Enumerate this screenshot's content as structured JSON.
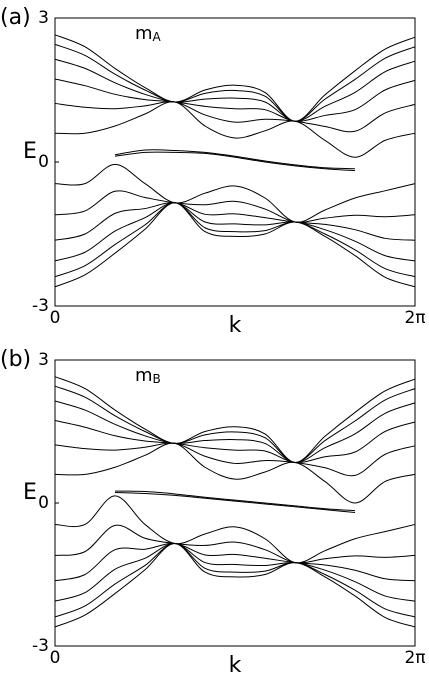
{
  "chart_data": [
    {
      "type": "line",
      "panel_label": "(a)",
      "annotation": {
        "text": "m",
        "subscript": "A"
      },
      "x_label": "k",
      "y_label": "E",
      "color": "#000000",
      "x": [
        0,
        0.5236,
        1.0472,
        1.5708,
        2.0944,
        2.618,
        3.1416,
        3.6652,
        4.1888,
        4.7124,
        5.236,
        5.7596,
        6.2832
      ],
      "xlim": [
        0,
        6.2832
      ],
      "xticks": [
        0,
        {
          "value": 6.2832,
          "label": "2π"
        }
      ],
      "ylim": [
        -3,
        3
      ],
      "yticks": [
        -3,
        0,
        3
      ],
      "series": [
        {
          "values": [
            2.65,
            2.4,
            1.95,
            1.55,
            1.25,
            1.5,
            1.6,
            1.45,
            0.85,
            1.4,
            1.9,
            2.35,
            2.6
          ]
        },
        {
          "values": [
            2.45,
            2.22,
            1.83,
            1.5,
            1.25,
            1.43,
            1.49,
            1.37,
            0.85,
            1.31,
            1.72,
            2.16,
            2.4
          ]
        },
        {
          "values": [
            2.14,
            1.95,
            1.65,
            1.41,
            1.25,
            1.31,
            1.33,
            1.25,
            0.85,
            1.16,
            1.45,
            1.88,
            2.1
          ]
        },
        {
          "values": [
            1.73,
            1.59,
            1.41,
            1.3,
            1.25,
            1.16,
            1.11,
            1.09,
            0.85,
            0.97,
            1.09,
            1.5,
            1.7
          ]
        },
        {
          "values": [
            1.22,
            1.14,
            1.11,
            1.17,
            1.25,
            0.98,
            0.83,
            0.89,
            0.85,
            0.74,
            0.64,
            1.02,
            1.2
          ]
        },
        {
          "values": [
            0.6,
            0.6,
            0.75,
            1.0,
            1.25,
            0.75,
            0.5,
            0.65,
            0.85,
            0.45,
            0.1,
            0.45,
            0.6
          ]
        },
        {
          "values": [
            null,
            null,
            0.12,
            0.2,
            0.2,
            0.18,
            0.1,
            0.0,
            -0.08,
            -0.14,
            -0.18,
            null,
            null
          ]
        },
        {
          "values": [
            null,
            null,
            0.15,
            0.25,
            0.24,
            0.2,
            0.12,
            0.02,
            -0.06,
            -0.12,
            -0.14,
            null,
            null
          ]
        },
        {
          "values": [
            -0.45,
            -0.45,
            -0.05,
            -0.45,
            -0.85,
            -0.65,
            -0.5,
            -0.75,
            -1.25,
            -1.0,
            -0.75,
            -0.6,
            -0.45
          ]
        },
        {
          "values": [
            -1.1,
            -1.02,
            -0.61,
            -0.74,
            -0.85,
            -0.89,
            -0.82,
            -0.98,
            -1.25,
            -1.17,
            -1.11,
            -1.14,
            -1.1
          ]
        },
        {
          "values": [
            -1.63,
            -1.5,
            -1.07,
            -0.97,
            -0.85,
            -1.09,
            -1.08,
            -1.16,
            -1.25,
            -1.3,
            -1.41,
            -1.59,
            -1.63
          ]
        },
        {
          "values": [
            -2.06,
            -1.88,
            -1.44,
            -1.16,
            -0.85,
            -1.25,
            -1.29,
            -1.31,
            -1.25,
            -1.41,
            -1.65,
            -1.95,
            -2.06
          ]
        },
        {
          "values": [
            -2.39,
            -2.16,
            -1.72,
            -1.31,
            -0.85,
            -1.37,
            -1.45,
            -1.43,
            -1.25,
            -1.5,
            -1.83,
            -2.22,
            -2.39
          ]
        },
        {
          "values": [
            -2.6,
            -2.35,
            -1.9,
            -1.4,
            -0.85,
            -1.45,
            -1.55,
            -1.5,
            -1.25,
            -1.55,
            -1.95,
            -2.4,
            -2.6
          ]
        }
      ]
    },
    {
      "type": "line",
      "panel_label": "(b)",
      "annotation": {
        "text": "m",
        "subscript": "B"
      },
      "x_label": "k",
      "y_label": "E",
      "color": "#000000",
      "x": [
        0,
        0.5236,
        1.0472,
        1.5708,
        2.0944,
        2.618,
        3.1416,
        3.6652,
        4.1888,
        4.7124,
        5.236,
        5.7596,
        6.2832
      ],
      "xlim": [
        0,
        6.2832
      ],
      "xticks": [
        0,
        {
          "value": 6.2832,
          "label": "2π"
        }
      ],
      "ylim": [
        -3,
        3
      ],
      "yticks": [
        -3,
        0,
        3
      ],
      "series": [
        {
          "values": [
            2.65,
            2.4,
            1.95,
            1.55,
            1.25,
            1.5,
            1.6,
            1.45,
            0.85,
            1.4,
            1.9,
            2.35,
            2.6
          ]
        },
        {
          "values": [
            2.45,
            2.22,
            1.83,
            1.5,
            1.25,
            1.43,
            1.49,
            1.37,
            0.85,
            1.31,
            1.72,
            2.16,
            2.4
          ]
        },
        {
          "values": [
            2.14,
            1.95,
            1.65,
            1.41,
            1.25,
            1.31,
            1.33,
            1.25,
            0.85,
            1.16,
            1.45,
            1.88,
            2.1
          ]
        },
        {
          "values": [
            1.73,
            1.59,
            1.41,
            1.3,
            1.25,
            1.16,
            1.11,
            1.09,
            0.85,
            0.97,
            1.07,
            1.5,
            1.7
          ]
        },
        {
          "values": [
            1.22,
            1.14,
            1.11,
            1.17,
            1.25,
            0.98,
            0.83,
            0.89,
            0.85,
            0.74,
            0.58,
            1.02,
            1.2
          ]
        },
        {
          "values": [
            0.6,
            0.6,
            0.75,
            1.0,
            1.25,
            0.75,
            0.5,
            0.65,
            0.85,
            0.45,
            0.0,
            0.45,
            0.6
          ]
        },
        {
          "values": [
            null,
            null,
            0.22,
            0.2,
            0.16,
            0.1,
            0.04,
            -0.02,
            -0.08,
            -0.14,
            -0.2,
            null,
            null
          ]
        },
        {
          "values": [
            null,
            null,
            0.25,
            0.24,
            0.19,
            0.12,
            0.06,
            0.0,
            -0.06,
            -0.12,
            -0.16,
            null,
            null
          ]
        },
        {
          "values": [
            -0.45,
            -0.45,
            0.15,
            -0.45,
            -0.85,
            -0.65,
            -0.5,
            -0.75,
            -1.25,
            -1.0,
            -0.75,
            -0.6,
            -0.45
          ]
        },
        {
          "values": [
            -1.1,
            -1.02,
            -0.47,
            -0.74,
            -0.85,
            -0.89,
            -0.82,
            -0.98,
            -1.25,
            -1.17,
            -1.11,
            -1.14,
            -1.1
          ]
        },
        {
          "values": [
            -1.63,
            -1.5,
            -0.98,
            -0.97,
            -0.85,
            -1.09,
            -1.08,
            -1.16,
            -1.25,
            -1.3,
            -1.41,
            -1.59,
            -1.63
          ]
        },
        {
          "values": [
            -2.06,
            -1.88,
            -1.39,
            -1.16,
            -0.85,
            -1.25,
            -1.29,
            -1.31,
            -1.25,
            -1.41,
            -1.65,
            -1.95,
            -2.06
          ]
        },
        {
          "values": [
            -2.39,
            -2.16,
            -1.7,
            -1.31,
            -0.85,
            -1.37,
            -1.45,
            -1.43,
            -1.25,
            -1.5,
            -1.83,
            -2.22,
            -2.39
          ]
        },
        {
          "values": [
            -2.6,
            -2.35,
            -1.9,
            -1.4,
            -0.85,
            -1.45,
            -1.55,
            -1.5,
            -1.25,
            -1.55,
            -1.95,
            -2.4,
            -2.6
          ]
        }
      ]
    }
  ]
}
